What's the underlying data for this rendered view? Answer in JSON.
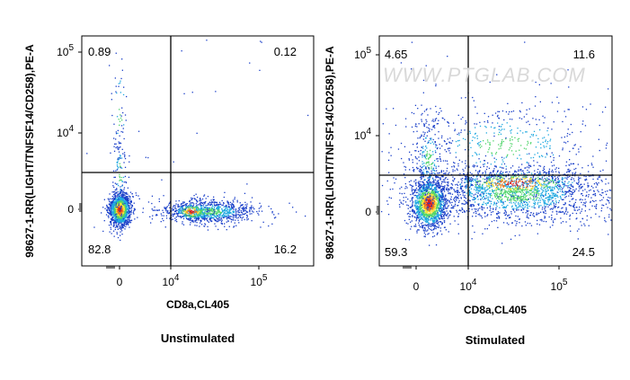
{
  "watermark": "WWW.PTGLAB.COM",
  "chart_data": [
    {
      "type": "scatter",
      "title": "Unstimulated",
      "xlabel": "CD8a,CL405",
      "ylabel": "98627-1-RR(LIGHT/TNFSF14/CD258),PE-A",
      "x_ticks": [
        {
          "label": "0",
          "exp": null
        },
        {
          "label": "10",
          "exp": "4"
        },
        {
          "label": "10",
          "exp": "5"
        }
      ],
      "y_ticks": [
        {
          "label": "0",
          "exp": null
        },
        {
          "label": "10",
          "exp": "4"
        },
        {
          "label": "10",
          "exp": "5"
        }
      ],
      "quadrant_percent": {
        "upper_left": "0.89",
        "upper_right": "0.12",
        "lower_left": "82.8",
        "lower_right": "16.2"
      },
      "colors": [
        "#1a3fc9",
        "#1fa8e0",
        "#4fd46a",
        "#f2e33a",
        "#f07a1e",
        "#d81e1e"
      ]
    },
    {
      "type": "scatter",
      "title": "Stimulated",
      "xlabel": "CD8a,CL405",
      "ylabel": "98627-1-RR(LIGHT/TNFSF14/CD258),PE-A",
      "x_ticks": [
        {
          "label": "0",
          "exp": null
        },
        {
          "label": "10",
          "exp": "4"
        },
        {
          "label": "10",
          "exp": "5"
        }
      ],
      "y_ticks": [
        {
          "label": "0",
          "exp": null
        },
        {
          "label": "10",
          "exp": "4"
        },
        {
          "label": "10",
          "exp": "5"
        }
      ],
      "quadrant_percent": {
        "upper_left": "4.65",
        "upper_right": "11.6",
        "lower_left": "59.3",
        "lower_right": "24.5"
      },
      "colors": [
        "#1a3fc9",
        "#1fa8e0",
        "#4fd46a",
        "#f2e33a",
        "#f07a1e",
        "#d81e1e"
      ]
    }
  ]
}
